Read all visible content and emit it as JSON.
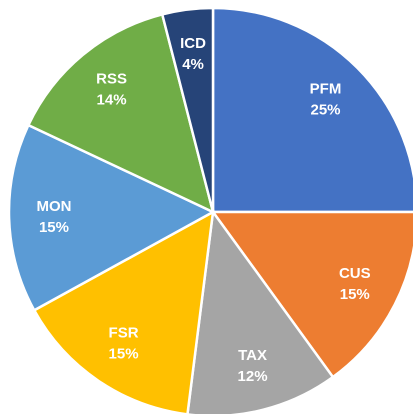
{
  "chart_data": {
    "type": "pie",
    "categories": [
      "PFM",
      "CUS",
      "TAX",
      "FSR",
      "MON",
      "RSS",
      "ICD"
    ],
    "values": [
      25,
      15,
      12,
      15,
      15,
      14,
      4
    ],
    "value_labels": [
      "25%",
      "15%",
      "12%",
      "15%",
      "15%",
      "14%",
      "4%"
    ],
    "colors": [
      "#4472c4",
      "#ed7d31",
      "#a5a5a5",
      "#ffc000",
      "#5b9bd5",
      "#70ad47",
      "#264478"
    ]
  }
}
